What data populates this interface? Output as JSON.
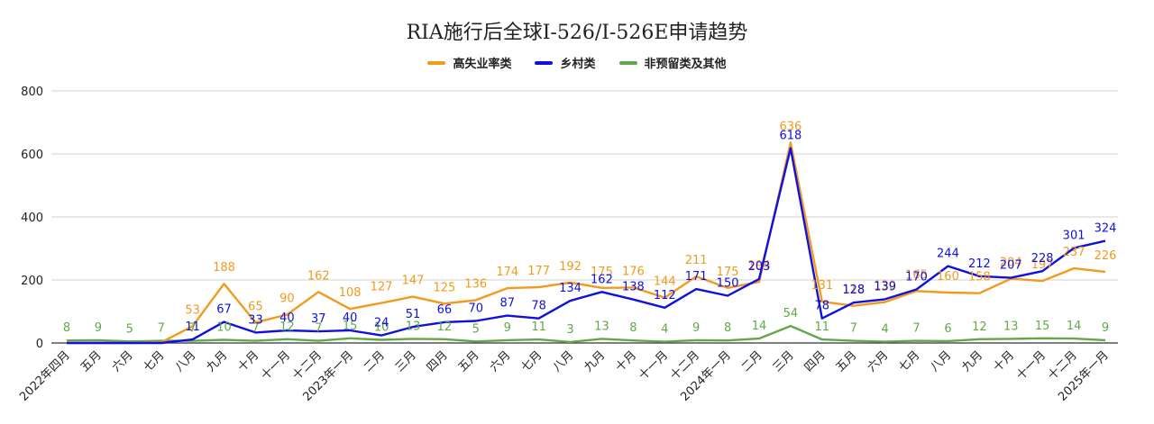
{
  "chart_data": {
    "type": "line",
    "title": "RIA施行后全球I-526/I-526E申请趋势",
    "xlabel": "",
    "ylabel": "",
    "ylim": [
      0,
      800
    ],
    "yticks": [
      0,
      200,
      400,
      600,
      800
    ],
    "grid": true,
    "legend_position": "top-center",
    "categories": [
      "2022年四月",
      "五月",
      "六月",
      "七月",
      "八月",
      "九月",
      "十月",
      "十一月",
      "十二月",
      "2023年一月",
      "二月",
      "三月",
      "四月",
      "五月",
      "六月",
      "七月",
      "八月",
      "九月",
      "十月",
      "十一月",
      "十二月",
      "2024年一月",
      "二月",
      "三月",
      "四月",
      "五月",
      "六月",
      "七月",
      "八月",
      "九月",
      "十月",
      "十一月",
      "十二月",
      "2025年一月"
    ],
    "series": [
      {
        "name": "高失业率类",
        "color": "#f29a1c",
        "values": [
          0,
          0,
          0,
          2,
          53,
          188,
          65,
          90,
          162,
          108,
          127,
          147,
          125,
          136,
          174,
          177,
          192,
          175,
          176,
          144,
          211,
          175,
          194,
          636,
          131,
          118,
          130,
          165,
          160,
          158,
          204,
          197,
          237,
          226
        ]
      },
      {
        "name": "乡村类",
        "color": "#1010e0",
        "values": [
          0,
          0,
          0,
          0,
          11,
          67,
          33,
          40,
          37,
          40,
          24,
          51,
          66,
          70,
          87,
          78,
          134,
          162,
          138,
          112,
          171,
          150,
          203,
          618,
          78,
          128,
          139,
          170,
          244,
          212,
          207,
          228,
          301,
          324
        ]
      },
      {
        "name": "非预留类及其他",
        "color": "#62a84a",
        "values": [
          8,
          9,
          5,
          7,
          7,
          10,
          7,
          12,
          7,
          15,
          10,
          13,
          12,
          5,
          9,
          11,
          3,
          13,
          8,
          4,
          9,
          8,
          14,
          54,
          11,
          7,
          4,
          7,
          6,
          12,
          13,
          15,
          14,
          9
        ]
      }
    ]
  }
}
